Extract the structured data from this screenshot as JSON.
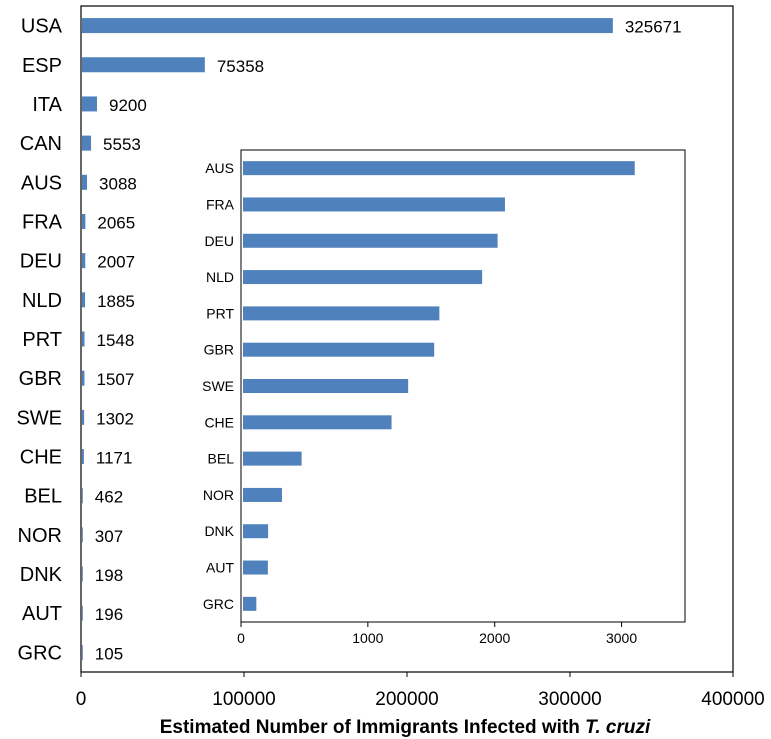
{
  "chart_data": [
    {
      "type": "bar",
      "orientation": "horizontal",
      "categories": [
        "USA",
        "ESP",
        "ITA",
        "CAN",
        "AUS",
        "FRA",
        "DEU",
        "NLD",
        "PRT",
        "GBR",
        "SWE",
        "CHE",
        "BEL",
        "NOR",
        "DNK",
        "AUT",
        "GRC"
      ],
      "values": [
        325671,
        75358,
        9200,
        5553,
        3088,
        2065,
        2007,
        1885,
        1548,
        1507,
        1302,
        1171,
        462,
        307,
        198,
        196,
        105
      ],
      "value_labels": [
        "325671",
        "75358",
        "9200",
        "5553",
        "3088",
        "2065",
        "2007",
        "1885",
        "1548",
        "1507",
        "1302",
        "1171",
        "462",
        "307",
        "198",
        "196",
        "105"
      ],
      "xlim": [
        0,
        400000
      ],
      "xticks": [
        0,
        100000,
        200000,
        300000,
        400000
      ],
      "xtick_labels": [
        "0",
        "100000",
        "200000",
        "300000",
        "400000"
      ],
      "xlabel_main": "Estimated Number of Immigrants Infected with ",
      "xlabel_italic": "T. cruzi",
      "bar_color": "#4f81bd",
      "grid": false,
      "legend": "none"
    },
    {
      "type": "bar",
      "orientation": "horizontal",
      "role": "inset",
      "categories": [
        "AUS",
        "FRA",
        "DEU",
        "NLD",
        "PRT",
        "GBR",
        "SWE",
        "CHE",
        "BEL",
        "NOR",
        "DNK",
        "AUT",
        "GRC"
      ],
      "values": [
        3088,
        2065,
        2007,
        1885,
        1548,
        1507,
        1302,
        1171,
        462,
        307,
        198,
        196,
        105
      ],
      "xlim": [
        0,
        3500
      ],
      "xticks": [
        0,
        1000,
        2000,
        3000
      ],
      "xtick_labels": [
        "0",
        "1000",
        "2000",
        "3000"
      ],
      "bar_color": "#4f81bd",
      "grid": false,
      "legend": "none"
    }
  ]
}
